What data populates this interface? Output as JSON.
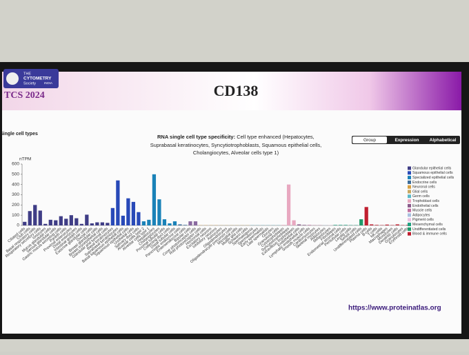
{
  "header": {
    "logo": [
      "THE",
      "CYTOMETRY",
      "Society",
      "INDIA"
    ],
    "event": "TCS 2024",
    "title": "CD138"
  },
  "footer": {
    "url": "https://www.proteinatlas.org"
  },
  "chart_data": {
    "type": "bar",
    "section": "Single cell types",
    "title": "RNA single cell type specificity:",
    "subtitle": [
      "Cell type enhanced (Hepatocytes,",
      "Suprabasal keratinocytes, Syncytiotrophoblasts, Squamous epithelial cells,",
      "Cholangiocytes, Alveolar cells type 1)"
    ],
    "tabs": [
      "Group",
      "Expression",
      "Alphabetical"
    ],
    "ylabel": "nTPM",
    "ylim": [
      0,
      600
    ],
    "yticks": [
      0,
      100,
      200,
      300,
      400,
      500,
      600
    ],
    "categories": [
      "Ciliated cells",
      "Club cells",
      "Basal respiratory cells",
      "Respiratory secretory cells",
      "Ionocytes",
      "Mucus glandular cells",
      "Serous glandular cells",
      "Gastric mucus-secreting cells",
      "Paneth cells",
      "Proximal enterocytes",
      "Distal enterocytes",
      "Intestinal goblet cells",
      "Exocrine glandular cells",
      "Ductal cells",
      "Breast glandular cells",
      "Breast myoepithelial cells",
      "Glandular and luminal cells",
      "Basal keratinocytes",
      "Suprabasal keratinocytes",
      "Basal squamous epithelial cells",
      "Squamous epithelial cells",
      "Urothelial cells",
      "Salivary duct cells",
      "Alveolar cells type 2",
      "Alveolar cells type 1",
      "Hepatocytes",
      "Cholangiocytes",
      "Proximal tubular cells",
      "Collecting duct cells",
      "Distal tubular cells",
      "Pancreatic endocrine cells",
      "Enteroendocrine cells",
      "Bipolar cells",
      "Cone photoreceptor cells",
      "Rod photoreceptor cells",
      "Horizontal cells",
      "Excitatory neurons",
      "Inhibitory neurons",
      "Astrocytes",
      "Oligodendrocytes",
      "Oligodendrocyte precursor cells",
      "Microglial cells",
      "Muller glia cells",
      "Schwann cells",
      "Spermatogonia",
      "Spermatocytes",
      "Early spermatids",
      "Late spermatids",
      "Oocytes",
      "Granulosa cells",
      "Cytotrophoblasts",
      "Syncytiotrophoblasts",
      "Extravillous trophoblasts",
      "Endothelial cells",
      "Lymphatic endothelial cells",
      "Smooth muscle cells",
      "Cardiomyocytes",
      "Skeletal myocytes",
      "Adipocytes",
      "Melanocytes",
      "Fibroblasts",
      "Endometrial stromal cells",
      "Peritubular cells",
      "Leydig cells",
      "Sertoli cells",
      "Undifferentiated cells",
      "Plasma cells",
      "B-cells",
      "T-cells",
      "NK-cells",
      "Macrophages",
      "Monocytes",
      "Dendritic cells",
      "Granulocytes",
      "Erythroid cells"
    ],
    "values": [
      35,
      140,
      200,
      145,
      15,
      55,
      50,
      90,
      65,
      100,
      70,
      15,
      105,
      20,
      30,
      30,
      25,
      170,
      440,
      95,
      265,
      230,
      130,
      40,
      55,
      500,
      255,
      60,
      20,
      40,
      10,
      5,
      40,
      40,
      2,
      2,
      2,
      2,
      2,
      2,
      2,
      2,
      2,
      2,
      2,
      2,
      2,
      2,
      2,
      2,
      5,
      400,
      50,
      10,
      5,
      5,
      2,
      2,
      2,
      2,
      5,
      5,
      5,
      3,
      3,
      60,
      180,
      10,
      5,
      3,
      8,
      3,
      10,
      3,
      5
    ],
    "colors": [
      "#3f3d86",
      "#3f3d86",
      "#3f3d86",
      "#3f3d86",
      "#3f3d86",
      "#3f3d86",
      "#3f3d86",
      "#3f3d86",
      "#3f3d86",
      "#3f3d86",
      "#3f3d86",
      "#3f3d86",
      "#3f3d86",
      "#3f3d86",
      "#3f3d86",
      "#3f3d86",
      "#3f3d86",
      "#2849b8",
      "#2849b8",
      "#2849b8",
      "#2849b8",
      "#2849b8",
      "#2849b8",
      "#1a82b8",
      "#1a82b8",
      "#1a82b8",
      "#1a82b8",
      "#1a82b8",
      "#1a82b8",
      "#1a82b8",
      "#3b6c9a",
      "#3b6c9a",
      "#8a6aa0",
      "#8a6aa0",
      "#d8a040",
      "#d8a040",
      "#d8a040",
      "#d8a040",
      "#c8a860",
      "#c8a860",
      "#c8a860",
      "#c8a860",
      "#c8a860",
      "#c8a860",
      "#5ab8c8",
      "#5ab8c8",
      "#5ab8c8",
      "#5ab8c8",
      "#5ab8c8",
      "#5ab8c8",
      "#e8a8c0",
      "#e8a8c0",
      "#e8a8c0",
      "#8a5a8a",
      "#8a5a8a",
      "#c070a0",
      "#c070a0",
      "#c070a0",
      "#a8c0e0",
      "#e8c0e0",
      "#20a080",
      "#20a080",
      "#20a080",
      "#20a080",
      "#20a080",
      "#1f9a6a",
      "#c01f30",
      "#c01f30",
      "#c01f30",
      "#c01f30",
      "#c01f30",
      "#c01f30",
      "#c01f30",
      "#c01f30",
      "#c01f30"
    ],
    "legend": [
      {
        "name": "Glandular epithelial cells",
        "color": "#3f3d86"
      },
      {
        "name": "Squamous epithelial cells",
        "color": "#2849b8"
      },
      {
        "name": "Specialized epithelial cells",
        "color": "#1a82b8"
      },
      {
        "name": "Endocrine cells",
        "color": "#3b6c9a"
      },
      {
        "name": "Neuronal cells",
        "color": "#d8a040"
      },
      {
        "name": "Glial cells",
        "color": "#c8a860"
      },
      {
        "name": "Germ cells",
        "color": "#5ab8c8"
      },
      {
        "name": "Trophoblast cells",
        "color": "#e8a8c0"
      },
      {
        "name": "Endothelial cells",
        "color": "#8a5a8a"
      },
      {
        "name": "Muscle cells",
        "color": "#c070a0"
      },
      {
        "name": "Adipocytes",
        "color": "#a8c0e0"
      },
      {
        "name": "Pigment cells",
        "color": "#e8c0e0"
      },
      {
        "name": "Mesenchymal cells",
        "color": "#20a080"
      },
      {
        "name": "Undifferentiated cells",
        "color": "#1f9a6a"
      },
      {
        "name": "Blood & immune cells",
        "color": "#c01f30"
      }
    ]
  }
}
